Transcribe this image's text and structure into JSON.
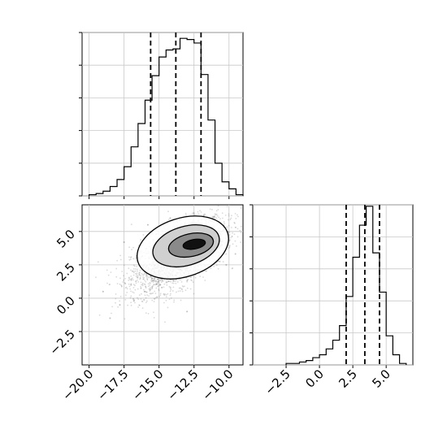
{
  "chart_data": [
    {
      "type": "histogram",
      "panel": "top-left",
      "variable_index": 0,
      "xlim": [
        -20.5,
        -9
      ],
      "bins": [
        {
          "x0": -20.0,
          "x1": -19.5,
          "count": 1
        },
        {
          "x0": -19.5,
          "x1": -19.0,
          "count": 2
        },
        {
          "x0": -19.0,
          "x1": -18.5,
          "count": 4
        },
        {
          "x0": -18.5,
          "x1": -18.0,
          "count": 8
        },
        {
          "x0": -18.0,
          "x1": -17.5,
          "count": 14
        },
        {
          "x0": -17.5,
          "x1": -17.0,
          "count": 25
        },
        {
          "x0": -17.0,
          "x1": -16.5,
          "count": 42
        },
        {
          "x0": -16.5,
          "x1": -16.0,
          "count": 62
        },
        {
          "x0": -16.0,
          "x1": -15.5,
          "count": 82
        },
        {
          "x0": -15.5,
          "x1": -15.0,
          "count": 103
        },
        {
          "x0": -15.0,
          "x1": -14.5,
          "count": 119
        },
        {
          "x0": -14.5,
          "x1": -14.0,
          "count": 125
        },
        {
          "x0": -14.0,
          "x1": -13.5,
          "count": 126
        },
        {
          "x0": -13.5,
          "x1": -13.0,
          "count": 135
        },
        {
          "x0": -13.0,
          "x1": -12.5,
          "count": 134
        },
        {
          "x0": -12.5,
          "x1": -12.0,
          "count": 131
        },
        {
          "x0": -12.0,
          "x1": -11.5,
          "count": 104
        },
        {
          "x0": -11.5,
          "x1": -11.0,
          "count": 65
        },
        {
          "x0": -11.0,
          "x1": -10.5,
          "count": 28
        },
        {
          "x0": -10.5,
          "x1": -10.0,
          "count": 12
        },
        {
          "x0": -10.0,
          "x1": -9.5,
          "count": 6
        },
        {
          "x0": -9.5,
          "x1": -9.0,
          "count": 1
        }
      ],
      "ylim": [
        0,
        140
      ],
      "quantiles": [
        -15.6,
        -13.8,
        -12.0
      ]
    },
    {
      "type": "scatter",
      "panel": "bottom-left",
      "xlim": [
        -20.5,
        -9
      ],
      "ylim": [
        -5,
        7
      ],
      "points": [
        [
          -14.0,
          3.5
        ],
        [
          -13.0,
          4.0
        ],
        [
          -15.0,
          2.8
        ],
        [
          -12.5,
          4.5
        ],
        [
          -16.0,
          2.0
        ],
        [
          -13.5,
          3.2
        ],
        [
          -14.5,
          4.1
        ],
        [
          -12.0,
          3.9
        ],
        [
          -15.5,
          1.5
        ],
        [
          -11.5,
          4.6
        ],
        [
          -17.0,
          1.0
        ],
        [
          -13.8,
          5.0
        ],
        [
          -14.8,
          0.8
        ],
        [
          -12.8,
          2.6
        ],
        [
          -16.5,
          3.0
        ],
        [
          -11.0,
          5.2
        ],
        [
          -15.2,
          4.8
        ],
        [
          -13.2,
          1.9
        ],
        [
          -17.8,
          -0.5
        ],
        [
          -10.5,
          4.0
        ],
        [
          -18.5,
          -1.5
        ],
        [
          -14.2,
          6.0
        ],
        [
          -12.2,
          5.8
        ],
        [
          -16.8,
          -0.2
        ],
        [
          -15.8,
          5.5
        ],
        [
          -10.2,
          2.5
        ],
        [
          -19.0,
          0.5
        ],
        [
          -13.0,
          -1.0
        ],
        [
          -11.8,
          6.2
        ],
        [
          -17.5,
          4.2
        ]
      ],
      "contour_levels": [
        "outer",
        "middle",
        "inner",
        "core"
      ]
    },
    {
      "type": "histogram",
      "panel": "bottom-right",
      "variable_index": 1,
      "xlim": [
        -5,
        7
      ],
      "bins": [
        {
          "x0": -2.5,
          "x1": -2.0,
          "count": 1
        },
        {
          "x0": -2.0,
          "x1": -1.5,
          "count": 1
        },
        {
          "x0": -1.5,
          "x1": -1.0,
          "count": 2
        },
        {
          "x0": -1.0,
          "x1": -0.5,
          "count": 3
        },
        {
          "x0": -0.5,
          "x1": 0.0,
          "count": 5
        },
        {
          "x0": 0.0,
          "x1": 0.5,
          "count": 7
        },
        {
          "x0": 0.5,
          "x1": 1.0,
          "count": 11
        },
        {
          "x0": 1.0,
          "x1": 1.5,
          "count": 17
        },
        {
          "x0": 1.5,
          "x1": 2.0,
          "count": 27
        },
        {
          "x0": 2.0,
          "x1": 2.5,
          "count": 47
        },
        {
          "x0": 2.5,
          "x1": 3.0,
          "count": 74
        },
        {
          "x0": 3.0,
          "x1": 3.5,
          "count": 96
        },
        {
          "x0": 3.5,
          "x1": 4.0,
          "count": 109
        },
        {
          "x0": 4.0,
          "x1": 4.5,
          "count": 77
        },
        {
          "x0": 4.5,
          "x1": 5.0,
          "count": 50
        },
        {
          "x0": 5.0,
          "x1": 5.5,
          "count": 20
        },
        {
          "x0": 5.5,
          "x1": 6.0,
          "count": 7
        },
        {
          "x0": 6.0,
          "x1": 6.5,
          "count": 1
        }
      ],
      "ylim": [
        0,
        110
      ],
      "quantiles": [
        2.0,
        3.4,
        4.5
      ]
    }
  ],
  "axes": {
    "x0_ticks": [
      "−20.0",
      "−17.5",
      "−15.0",
      "−12.5",
      "−10.0"
    ],
    "x0_tick_values": [
      -20,
      -17.5,
      -15,
      -12.5,
      -10
    ],
    "y1_ticks": [
      "5.0",
      "2.5",
      "0.0",
      "−2.5"
    ],
    "y1_tick_values": [
      5,
      2.5,
      0,
      -2.5
    ],
    "x1_ticks": [
      "−2.5",
      "0.0",
      "2.5",
      "5.0"
    ],
    "x1_tick_values": [
      -2.5,
      0,
      2.5,
      5
    ]
  }
}
